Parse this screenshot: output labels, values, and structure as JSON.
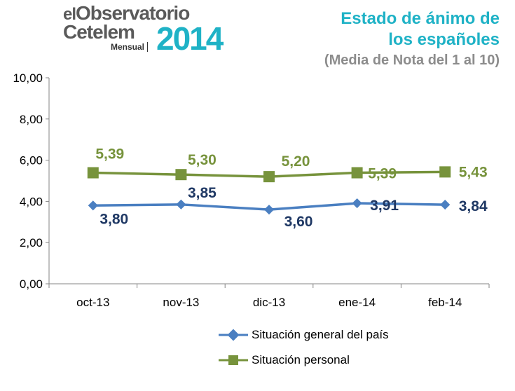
{
  "logo": {
    "line1_prefix": "el",
    "line1_main": "Observatorio",
    "line2": "Cetelem",
    "sub": "Mensual",
    "year": "2014"
  },
  "header": {
    "title_line1": "Estado de ánimo de",
    "title_line2": "los españoles",
    "subtitle": "(Media de Nota del 1 al 10)"
  },
  "colors": {
    "series_general": "#4a7fc1",
    "series_personal": "#77933c",
    "label_general": "#1f3864",
    "label_personal": "#77933c",
    "title_accent": "#1fb2c6",
    "axis": "#868686"
  },
  "chart_data": {
    "type": "line",
    "categories": [
      "oct-13",
      "nov-13",
      "dic-13",
      "ene-14",
      "feb-14"
    ],
    "series": [
      {
        "name": "Situación general del país",
        "values": [
          3.8,
          3.85,
          3.6,
          3.91,
          3.84
        ],
        "labels": [
          "3,80",
          "3,85",
          "3,60",
          "3,91",
          "3,84"
        ],
        "marker": "diamond"
      },
      {
        "name": "Situación personal",
        "values": [
          5.39,
          5.3,
          5.2,
          5.39,
          5.43
        ],
        "labels": [
          "5,39",
          "5,30",
          "5,20",
          "5,39",
          "5,43"
        ],
        "marker": "square"
      }
    ],
    "yticks": [
      "0,00",
      "2,00",
      "4,00",
      "6,00",
      "8,00",
      "10,00"
    ],
    "ylim": [
      0,
      10
    ],
    "grid": false,
    "legend_position": "bottom"
  }
}
